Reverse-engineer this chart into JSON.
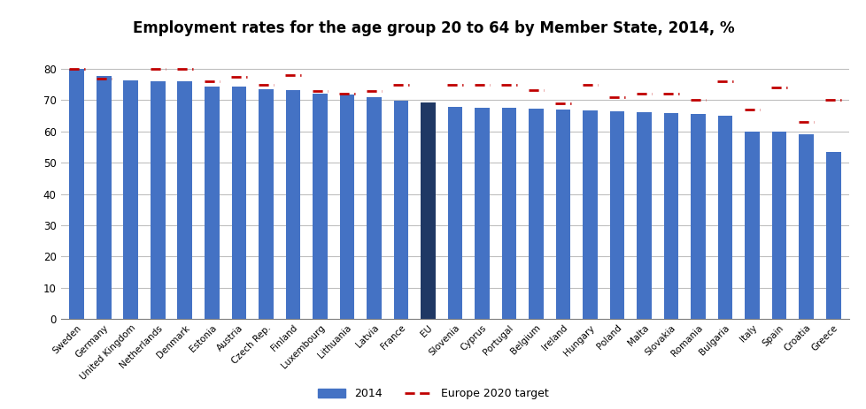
{
  "title": "Employment rates for the age group 20 to 64 by Member State, 2014, %",
  "categories": [
    "Sweden",
    "Germany",
    "United Kingdom",
    "Netherlands",
    "Denmark",
    "Estonia",
    "Austria",
    "Czech Rep.",
    "Finland",
    "Luxembourg",
    "Lithuania",
    "Latvia",
    "France",
    "EU",
    "Slovenia",
    "Cyprus",
    "Portugal",
    "Belgium",
    "Ireland",
    "Hungary",
    "Poland",
    "Malta",
    "Slovakia",
    "Romania",
    "Bulgaria",
    "Italy",
    "Spain",
    "Croatia",
    "Greece"
  ],
  "values": [
    80.0,
    77.7,
    76.2,
    76.1,
    75.9,
    74.3,
    74.2,
    73.5,
    73.1,
    72.1,
    71.8,
    71.0,
    69.9,
    69.2,
    67.8,
    67.6,
    67.6,
    67.3,
    67.1,
    66.7,
    66.5,
    66.0,
    65.9,
    65.7,
    65.1,
    59.9,
    59.9,
    59.2,
    53.3
  ],
  "targets": [
    80.0,
    77.0,
    null,
    80.0,
    80.0,
    76.0,
    77.5,
    75.0,
    78.0,
    73.0,
    72.0,
    73.0,
    75.0,
    null,
    75.0,
    75.0,
    75.0,
    73.2,
    69.0,
    75.0,
    71.0,
    72.0,
    72.0,
    70.0,
    76.0,
    67.0,
    74.0,
    63.0,
    70.0
  ],
  "bar_color": "#4472C4",
  "eu_bar_color": "#1F3864",
  "target_color": "#C00000",
  "ylim": [
    0,
    85
  ],
  "yticks": [
    0,
    10,
    20,
    30,
    40,
    50,
    60,
    70,
    80
  ],
  "legend_bar_label": "2014",
  "legend_target_label": "Europe 2020 target",
  "background_color": "#FFFFFF",
  "plot_bg_color": "#FFFFFF",
  "grid_color": "#BFBFBF",
  "border_color": "#000000"
}
